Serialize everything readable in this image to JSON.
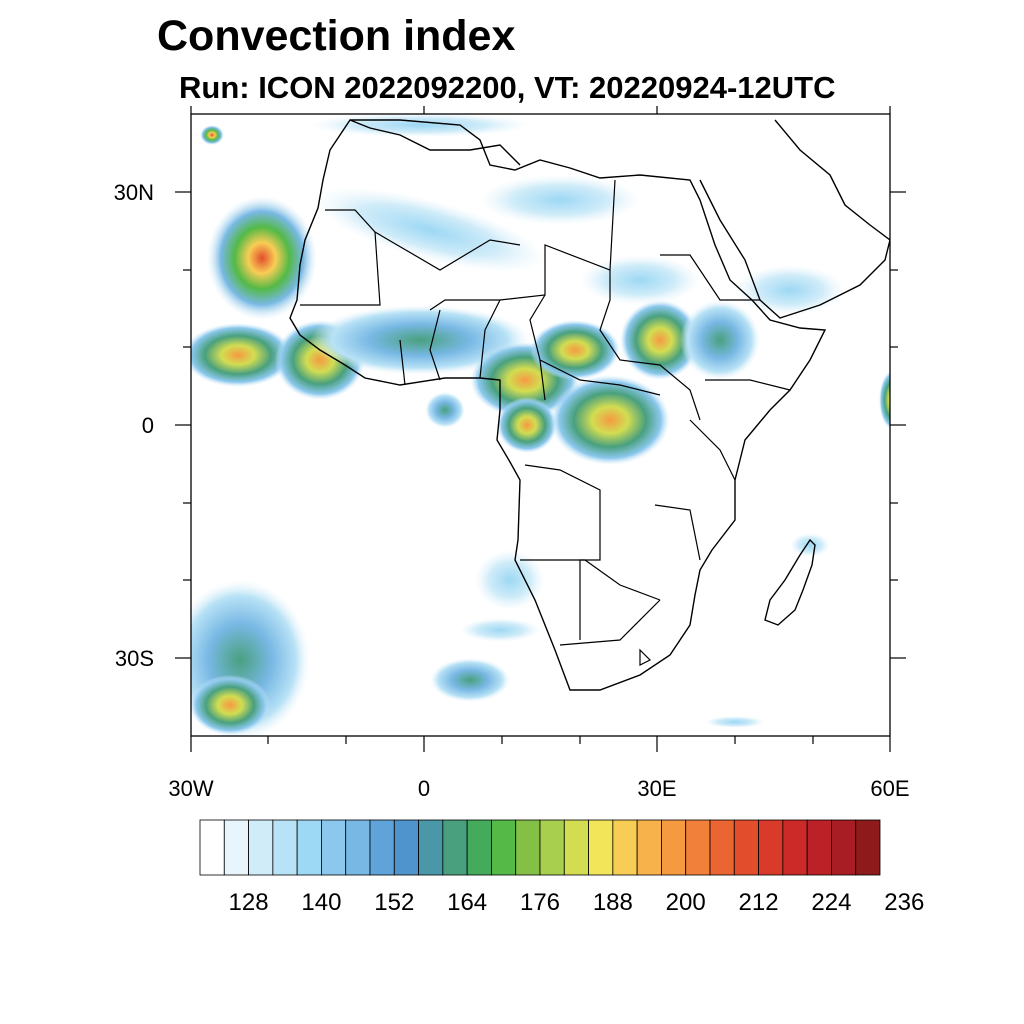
{
  "title": "Convection index",
  "subtitle": "Run: ICON 2022092200,  VT: 20220924-12UTC",
  "axes": {
    "lat_labels": [
      "30N",
      "0",
      "30S"
    ],
    "lon_labels": [
      "30W",
      "0",
      "30E",
      "60E"
    ]
  },
  "colorbar": {
    "colors": [
      "#ffffff",
      "#e8f5fc",
      "#d0ecf9",
      "#b8e2f6",
      "#9dd8f4",
      "#8cc8ee",
      "#78b8e4",
      "#5fa3d8",
      "#4f94cc",
      "#4a97a8",
      "#49a07e",
      "#44aa5c",
      "#54b947",
      "#85c046",
      "#a8cf4e",
      "#d2dd52",
      "#f2e55a",
      "#f8cd55",
      "#f8b24c",
      "#f69a42",
      "#f0803a",
      "#ea6532",
      "#e24e2c",
      "#d93a2a",
      "#cc2a29",
      "#bb2127",
      "#a81c24",
      "#8e1a1c"
    ],
    "tick_labels": [
      "128",
      "140",
      "152",
      "164",
      "176",
      "188",
      "200",
      "212",
      "224",
      "236"
    ]
  }
}
